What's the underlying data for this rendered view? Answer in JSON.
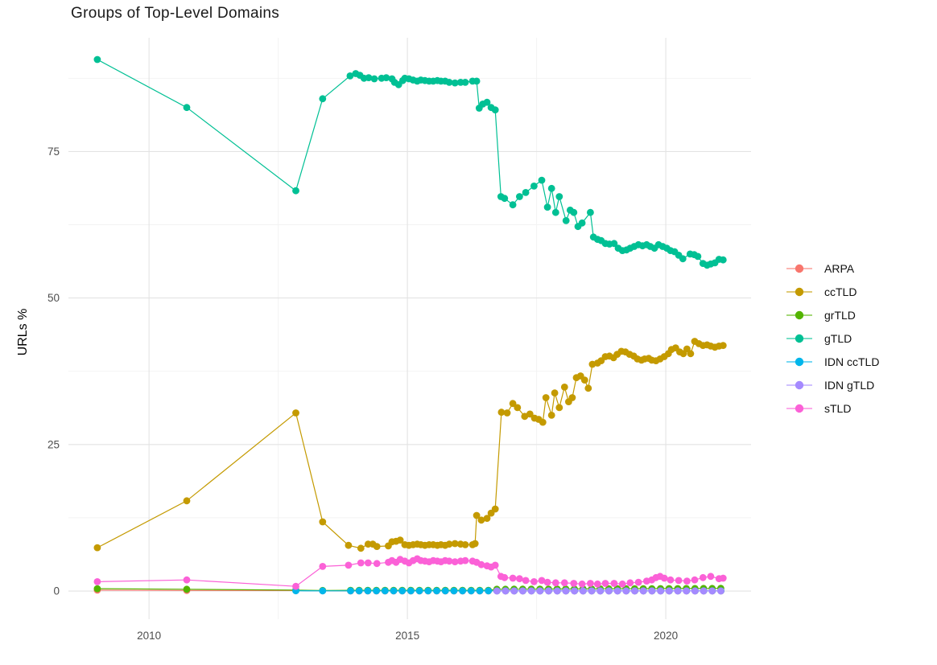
{
  "chart_data": {
    "type": "line",
    "title": "Groups of Top-Level Domains",
    "xlabel": "",
    "ylabel": "URLs %",
    "legend_position": "right",
    "grid": "major+minor",
    "background": "#ffffff",
    "grid_major_color": "#e3e3e3",
    "grid_minor_color": "#f2f2f2",
    "axis_text_color": "#4d4d4d",
    "x_ticks": [
      2010,
      2015,
      2020
    ],
    "x_tick_labels": [
      "2010",
      "2015",
      "2020"
    ],
    "x_minor_ticks": [
      2012.5,
      2017.5
    ],
    "y_ticks": [
      0,
      25,
      50,
      75
    ],
    "y_tick_labels": [
      "0",
      "25",
      "50",
      "75"
    ],
    "y_minor_ticks": [
      12.5,
      37.5,
      62.5,
      87.5
    ],
    "xlim": [
      2008.44,
      2021.65
    ],
    "ylim": [
      -4.8,
      94.4
    ],
    "series": [
      {
        "name": "ARPA",
        "color": "#F8766D",
        "points": [
          [
            2009.0,
            0.15
          ],
          [
            2010.73,
            0.1
          ],
          [
            2012.84,
            0.08
          ],
          [
            2013.36,
            0.05
          ]
        ],
        "runs": [
          {
            "from": 2013.9,
            "to": 2021.11,
            "step": 0.1667,
            "value": 0.02
          }
        ]
      },
      {
        "name": "ccTLD",
        "color": "#C49A00",
        "points": [
          [
            2009.0,
            7.4
          ],
          [
            2010.73,
            15.4
          ],
          [
            2012.84,
            30.4
          ],
          [
            2013.36,
            11.8
          ],
          [
            2013.86,
            7.8
          ],
          [
            2014.1,
            7.3
          ],
          [
            2014.24,
            8.0
          ],
          [
            2014.33,
            8.0
          ],
          [
            2014.41,
            7.6
          ],
          [
            2014.63,
            7.7
          ],
          [
            2014.7,
            8.4
          ],
          [
            2014.78,
            8.5
          ],
          [
            2014.86,
            8.7
          ],
          [
            2014.95,
            7.9
          ],
          [
            2015.03,
            7.8
          ],
          [
            2015.11,
            7.9
          ],
          [
            2015.19,
            8.0
          ],
          [
            2015.26,
            7.9
          ],
          [
            2015.34,
            7.8
          ],
          [
            2015.42,
            7.9
          ],
          [
            2015.5,
            7.9
          ],
          [
            2015.58,
            7.8
          ],
          [
            2015.65,
            7.9
          ],
          [
            2015.73,
            7.8
          ],
          [
            2015.81,
            8.0
          ],
          [
            2015.92,
            8.1
          ],
          [
            2016.03,
            8.0
          ],
          [
            2016.12,
            7.9
          ],
          [
            2016.26,
            7.9
          ],
          [
            2016.31,
            8.1
          ],
          [
            2016.34,
            12.9
          ],
          [
            2016.43,
            12.1
          ],
          [
            2016.54,
            12.4
          ],
          [
            2016.62,
            13.3
          ],
          [
            2016.7,
            14.0
          ],
          [
            2016.82,
            30.5
          ],
          [
            2016.93,
            30.4
          ],
          [
            2017.04,
            32.0
          ],
          [
            2017.13,
            31.3
          ],
          [
            2017.27,
            29.8
          ],
          [
            2017.37,
            30.2
          ],
          [
            2017.46,
            29.5
          ],
          [
            2017.54,
            29.3
          ],
          [
            2017.62,
            28.8
          ],
          [
            2017.68,
            33.0
          ],
          [
            2017.79,
            30.0
          ],
          [
            2017.85,
            33.8
          ],
          [
            2017.94,
            31.3
          ],
          [
            2018.04,
            34.8
          ],
          [
            2018.12,
            32.3
          ],
          [
            2018.19,
            33.0
          ],
          [
            2018.27,
            36.4
          ],
          [
            2018.35,
            36.7
          ],
          [
            2018.43,
            36.0
          ],
          [
            2018.5,
            34.6
          ],
          [
            2018.58,
            38.7
          ],
          [
            2018.68,
            38.9
          ],
          [
            2018.75,
            39.3
          ],
          [
            2018.83,
            40.0
          ],
          [
            2018.91,
            40.1
          ],
          [
            2018.99,
            39.8
          ],
          [
            2019.06,
            40.4
          ],
          [
            2019.14,
            40.9
          ],
          [
            2019.22,
            40.8
          ],
          [
            2019.3,
            40.4
          ],
          [
            2019.38,
            40.1
          ],
          [
            2019.45,
            39.6
          ],
          [
            2019.53,
            39.4
          ],
          [
            2019.59,
            39.6
          ],
          [
            2019.67,
            39.7
          ],
          [
            2019.73,
            39.4
          ],
          [
            2019.81,
            39.3
          ],
          [
            2019.89,
            39.6
          ],
          [
            2019.97,
            40.0
          ],
          [
            2020.05,
            40.5
          ],
          [
            2020.11,
            41.2
          ],
          [
            2020.19,
            41.5
          ],
          [
            2020.27,
            40.8
          ],
          [
            2020.34,
            40.5
          ],
          [
            2020.41,
            41.3
          ],
          [
            2020.48,
            40.5
          ],
          [
            2020.56,
            42.6
          ],
          [
            2020.64,
            42.2
          ],
          [
            2020.72,
            41.9
          ],
          [
            2020.8,
            42.0
          ],
          [
            2020.87,
            41.8
          ],
          [
            2020.95,
            41.6
          ],
          [
            2021.03,
            41.8
          ],
          [
            2021.11,
            41.9
          ]
        ]
      },
      {
        "name": "grTLD",
        "color": "#53B400",
        "points": [
          [
            2009.0,
            0.4
          ],
          [
            2010.73,
            0.3
          ],
          [
            2012.84,
            0.15
          ],
          [
            2013.36,
            0.1
          ]
        ],
        "runs": [
          {
            "from": 2013.9,
            "to": 2016.62,
            "step": 0.1667,
            "value": 0.12
          },
          {
            "from": 2016.73,
            "to": 2021.11,
            "step": 0.1667,
            "value_start": 0.3,
            "value_end": 0.45
          }
        ]
      },
      {
        "name": "gTLD",
        "color": "#00C094",
        "points": [
          [
            2009.0,
            90.7
          ],
          [
            2010.73,
            82.5
          ],
          [
            2012.84,
            68.3
          ],
          [
            2013.36,
            84.0
          ],
          [
            2013.89,
            87.9
          ],
          [
            2014.0,
            88.3
          ],
          [
            2014.08,
            88.0
          ],
          [
            2014.16,
            87.5
          ],
          [
            2014.25,
            87.6
          ],
          [
            2014.36,
            87.4
          ],
          [
            2014.5,
            87.5
          ],
          [
            2014.59,
            87.6
          ],
          [
            2014.7,
            87.4
          ],
          [
            2014.75,
            86.8
          ],
          [
            2014.83,
            86.4
          ],
          [
            2014.91,
            87.1
          ],
          [
            2014.95,
            87.5
          ],
          [
            2015.03,
            87.4
          ],
          [
            2015.11,
            87.2
          ],
          [
            2015.19,
            87.0
          ],
          [
            2015.26,
            87.2
          ],
          [
            2015.34,
            87.1
          ],
          [
            2015.42,
            87.0
          ],
          [
            2015.5,
            87.0
          ],
          [
            2015.58,
            87.1
          ],
          [
            2015.65,
            87.0
          ],
          [
            2015.73,
            87.0
          ],
          [
            2015.81,
            86.8
          ],
          [
            2015.92,
            86.7
          ],
          [
            2016.03,
            86.8
          ],
          [
            2016.12,
            86.8
          ],
          [
            2016.26,
            87.0
          ],
          [
            2016.34,
            87.0
          ],
          [
            2016.39,
            82.4
          ],
          [
            2016.46,
            83.1
          ],
          [
            2016.54,
            83.4
          ],
          [
            2016.62,
            82.5
          ],
          [
            2016.7,
            82.1
          ],
          [
            2016.81,
            67.3
          ],
          [
            2016.88,
            67.0
          ],
          [
            2017.04,
            65.9
          ],
          [
            2017.17,
            67.3
          ],
          [
            2017.29,
            68.0
          ],
          [
            2017.45,
            69.1
          ],
          [
            2017.6,
            70.1
          ],
          [
            2017.71,
            65.5
          ],
          [
            2017.79,
            68.7
          ],
          [
            2017.87,
            64.6
          ],
          [
            2017.94,
            67.3
          ],
          [
            2018.07,
            63.2
          ],
          [
            2018.15,
            65.0
          ],
          [
            2018.22,
            64.6
          ],
          [
            2018.3,
            62.2
          ],
          [
            2018.38,
            62.8
          ],
          [
            2018.54,
            64.6
          ],
          [
            2018.6,
            60.4
          ],
          [
            2018.68,
            60.0
          ],
          [
            2018.75,
            59.8
          ],
          [
            2018.83,
            59.3
          ],
          [
            2018.91,
            59.2
          ],
          [
            2019.0,
            59.3
          ],
          [
            2019.08,
            58.5
          ],
          [
            2019.16,
            58.1
          ],
          [
            2019.24,
            58.2
          ],
          [
            2019.31,
            58.5
          ],
          [
            2019.39,
            58.8
          ],
          [
            2019.47,
            59.1
          ],
          [
            2019.55,
            58.9
          ],
          [
            2019.63,
            59.1
          ],
          [
            2019.7,
            58.8
          ],
          [
            2019.78,
            58.5
          ],
          [
            2019.86,
            59.1
          ],
          [
            2019.94,
            58.8
          ],
          [
            2020.02,
            58.5
          ],
          [
            2020.09,
            58.1
          ],
          [
            2020.17,
            57.9
          ],
          [
            2020.25,
            57.3
          ],
          [
            2020.33,
            56.7
          ],
          [
            2020.47,
            57.5
          ],
          [
            2020.55,
            57.4
          ],
          [
            2020.62,
            57.1
          ],
          [
            2020.72,
            55.9
          ],
          [
            2020.8,
            55.6
          ],
          [
            2020.87,
            55.8
          ],
          [
            2020.95,
            56.0
          ],
          [
            2021.03,
            56.6
          ],
          [
            2021.11,
            56.5
          ]
        ]
      },
      {
        "name": "IDN ccTLD",
        "color": "#00B6EB",
        "points": [
          [
            2012.84,
            0.05
          ],
          [
            2013.36,
            0.03
          ]
        ],
        "runs": [
          {
            "from": 2013.9,
            "to": 2021.11,
            "step": 0.1667,
            "value": 0.03
          }
        ]
      },
      {
        "name": "IDN gTLD",
        "color": "#A58AFF",
        "runs": [
          {
            "from": 2016.73,
            "to": 2021.11,
            "step": 0.1667,
            "value": 0.02
          }
        ]
      },
      {
        "name": "sTLD",
        "color": "#FB61D7",
        "points": [
          [
            2009.0,
            1.6
          ],
          [
            2010.73,
            1.9
          ],
          [
            2012.84,
            0.8
          ],
          [
            2013.36,
            4.2
          ],
          [
            2013.86,
            4.4
          ],
          [
            2014.1,
            4.8
          ],
          [
            2014.24,
            4.8
          ],
          [
            2014.41,
            4.7
          ],
          [
            2014.63,
            4.9
          ],
          [
            2014.7,
            5.2
          ],
          [
            2014.78,
            4.9
          ],
          [
            2014.86,
            5.4
          ],
          [
            2014.95,
            5.1
          ],
          [
            2015.03,
            4.8
          ],
          [
            2015.11,
            5.2
          ],
          [
            2015.19,
            5.5
          ],
          [
            2015.26,
            5.2
          ],
          [
            2015.34,
            5.1
          ],
          [
            2015.42,
            5.0
          ],
          [
            2015.5,
            5.2
          ],
          [
            2015.58,
            5.1
          ],
          [
            2015.65,
            5.0
          ],
          [
            2015.73,
            5.2
          ],
          [
            2015.81,
            5.1
          ],
          [
            2015.92,
            5.0
          ],
          [
            2016.03,
            5.1
          ],
          [
            2016.12,
            5.2
          ],
          [
            2016.26,
            5.1
          ],
          [
            2016.34,
            4.9
          ],
          [
            2016.43,
            4.5
          ],
          [
            2016.54,
            4.3
          ],
          [
            2016.62,
            4.1
          ],
          [
            2016.7,
            4.4
          ],
          [
            2016.81,
            2.5
          ],
          [
            2016.88,
            2.3
          ],
          [
            2017.04,
            2.2
          ],
          [
            2017.17,
            2.1
          ],
          [
            2017.29,
            1.8
          ],
          [
            2017.45,
            1.6
          ],
          [
            2017.6,
            1.8
          ],
          [
            2017.71,
            1.5
          ],
          [
            2017.87,
            1.4
          ],
          [
            2018.04,
            1.4
          ],
          [
            2018.22,
            1.3
          ],
          [
            2018.38,
            1.2
          ],
          [
            2018.54,
            1.3
          ],
          [
            2018.68,
            1.2
          ],
          [
            2018.83,
            1.3
          ],
          [
            2019.0,
            1.3
          ],
          [
            2019.16,
            1.2
          ],
          [
            2019.31,
            1.4
          ],
          [
            2019.47,
            1.5
          ],
          [
            2019.63,
            1.7
          ],
          [
            2019.73,
            1.9
          ],
          [
            2019.81,
            2.3
          ],
          [
            2019.89,
            2.5
          ],
          [
            2019.97,
            2.2
          ],
          [
            2020.09,
            1.9
          ],
          [
            2020.25,
            1.8
          ],
          [
            2020.41,
            1.7
          ],
          [
            2020.56,
            1.9
          ],
          [
            2020.72,
            2.3
          ],
          [
            2020.87,
            2.5
          ],
          [
            2021.03,
            2.1
          ],
          [
            2021.11,
            2.2
          ]
        ]
      }
    ]
  }
}
